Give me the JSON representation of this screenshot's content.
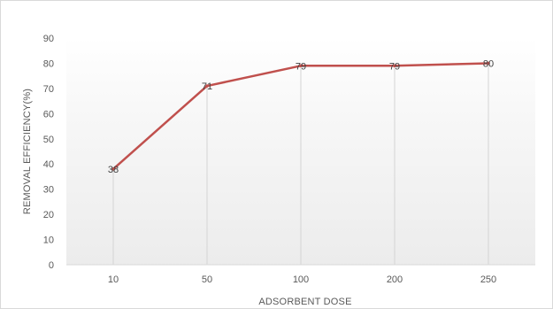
{
  "chart_data": {
    "type": "line",
    "title": "",
    "xlabel": "ADSORBENT DOSE",
    "ylabel": "REMOVAL EFFICIENCY(%)",
    "categories": [
      "10",
      "50",
      "100",
      "200",
      "250"
    ],
    "series": [
      {
        "values": [
          38,
          71,
          79,
          79,
          80
        ]
      }
    ],
    "ylim": [
      0,
      90
    ],
    "yticks": [
      0,
      10,
      20,
      30,
      40,
      50,
      60,
      70,
      80,
      90
    ],
    "data_labels": [
      "38",
      "71",
      "79",
      "79",
      "80"
    ],
    "grid": "vertical",
    "line_color": "#c0504d",
    "legend": "none"
  }
}
